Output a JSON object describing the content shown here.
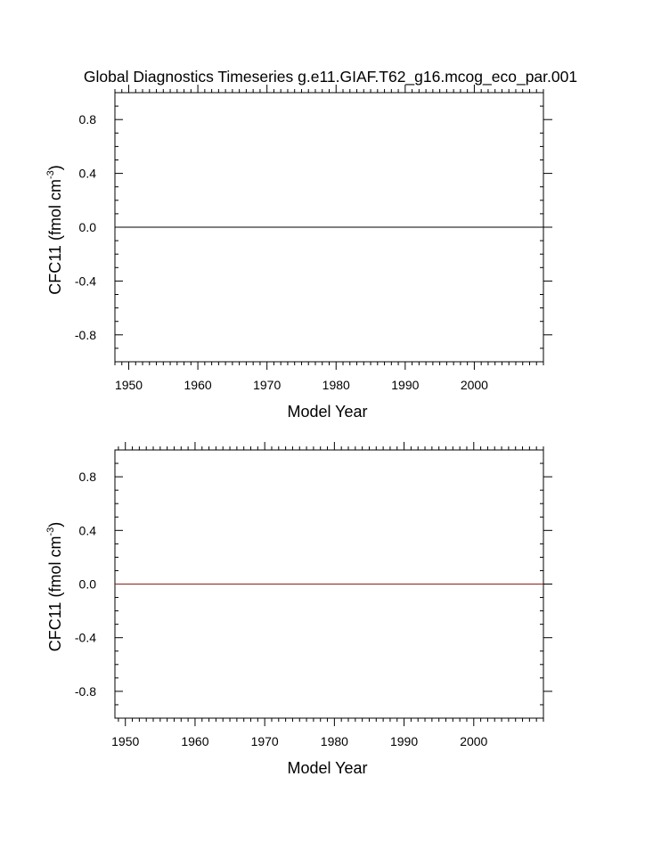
{
  "title": "Global Diagnostics Timeseries g.e11.GIAF.T62_g16.mcog_eco_par.001",
  "chart_data": [
    {
      "type": "line",
      "xlabel": "Model Year",
      "ylabel_main": "CFC11 (fmol cm",
      "ylabel_sup": "-3",
      "ylabel_close": ")",
      "xlim": [
        1948,
        2010
      ],
      "ylim": [
        -1.0,
        1.0
      ],
      "xticks": [
        1950,
        1960,
        1970,
        1980,
        1990,
        2000
      ],
      "yticks": [
        -0.8,
        -0.4,
        0.0,
        0.4,
        0.8
      ],
      "xtick_labels": [
        "1950",
        "1960",
        "1970",
        "1980",
        "1990",
        "2000"
      ],
      "ytick_labels": [
        "-0.8",
        "-0.4",
        "0.0",
        "0.4",
        "0.8"
      ],
      "series": [
        {
          "x": [
            1948,
            2010
          ],
          "y": [
            0.0,
            0.0
          ],
          "color": "#000000"
        }
      ]
    },
    {
      "type": "line",
      "xlabel": "Model Year",
      "ylabel_main": "CFC11 (fmol cm",
      "ylabel_sup": "-3",
      "ylabel_close": ")",
      "xlim": [
        1948.5,
        2010
      ],
      "ylim": [
        -1.0,
        1.0
      ],
      "xticks": [
        1950,
        1960,
        1970,
        1980,
        1990,
        2000
      ],
      "yticks": [
        -0.8,
        -0.4,
        0.0,
        0.4,
        0.8
      ],
      "xtick_labels": [
        "1950",
        "1960",
        "1970",
        "1980",
        "1990",
        "2000"
      ],
      "ytick_labels": [
        "-0.8",
        "-0.4",
        "0.0",
        "0.4",
        "0.8"
      ],
      "series": [
        {
          "x": [
            1948.5,
            2010
          ],
          "y": [
            0.0,
            0.0
          ],
          "color": "#8b1a1a"
        }
      ]
    }
  ]
}
